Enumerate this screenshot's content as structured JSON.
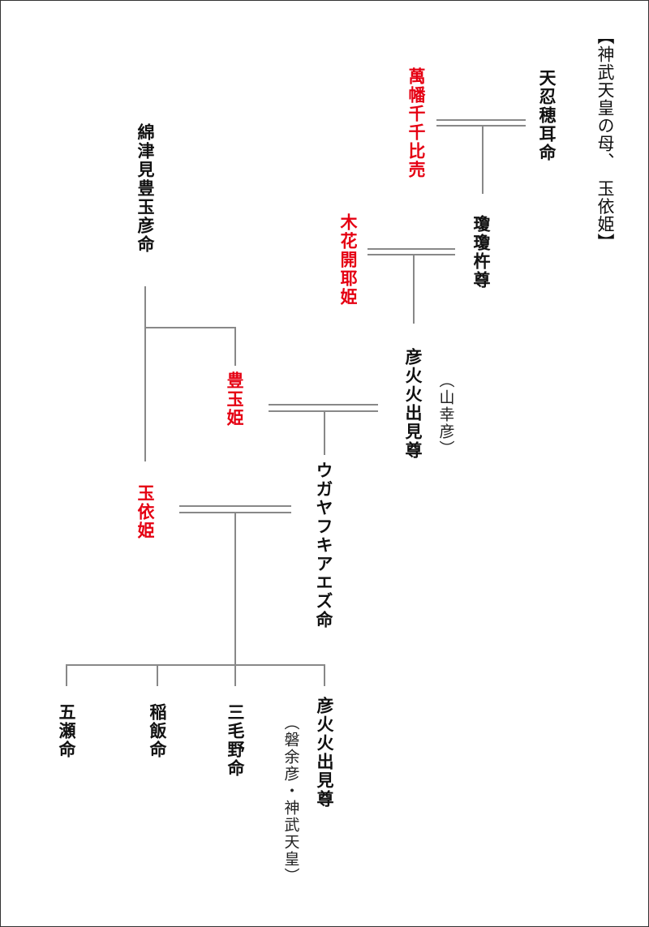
{
  "title": "【神武天皇の母、　玉依姫】",
  "people": {
    "ame_no_oshiho": "天忍穂耳命",
    "yorozuhata": "萬幡千千比売",
    "ninigi": "瓊瓊杵尊",
    "konohana": "木花開耶姫",
    "hikohohodemi": "彦火火出見尊",
    "hikohohodemi_note": "（山幸彦）",
    "watatsumi": "綿津見豊玉彦命",
    "toyotama": "豊玉姫",
    "ugaya": "ウガヤフキアエズ命",
    "tamayori": "玉依姫",
    "itsuse": "五瀬命",
    "inai": "稲飯命",
    "mikeno": "三毛野命",
    "jimmu": "彦火火出見尊",
    "jimmu_note": "（磐余彦・神武天皇）"
  },
  "colors": {
    "female_highlight": "#e50012",
    "text": "#111111",
    "line": "#888888"
  }
}
